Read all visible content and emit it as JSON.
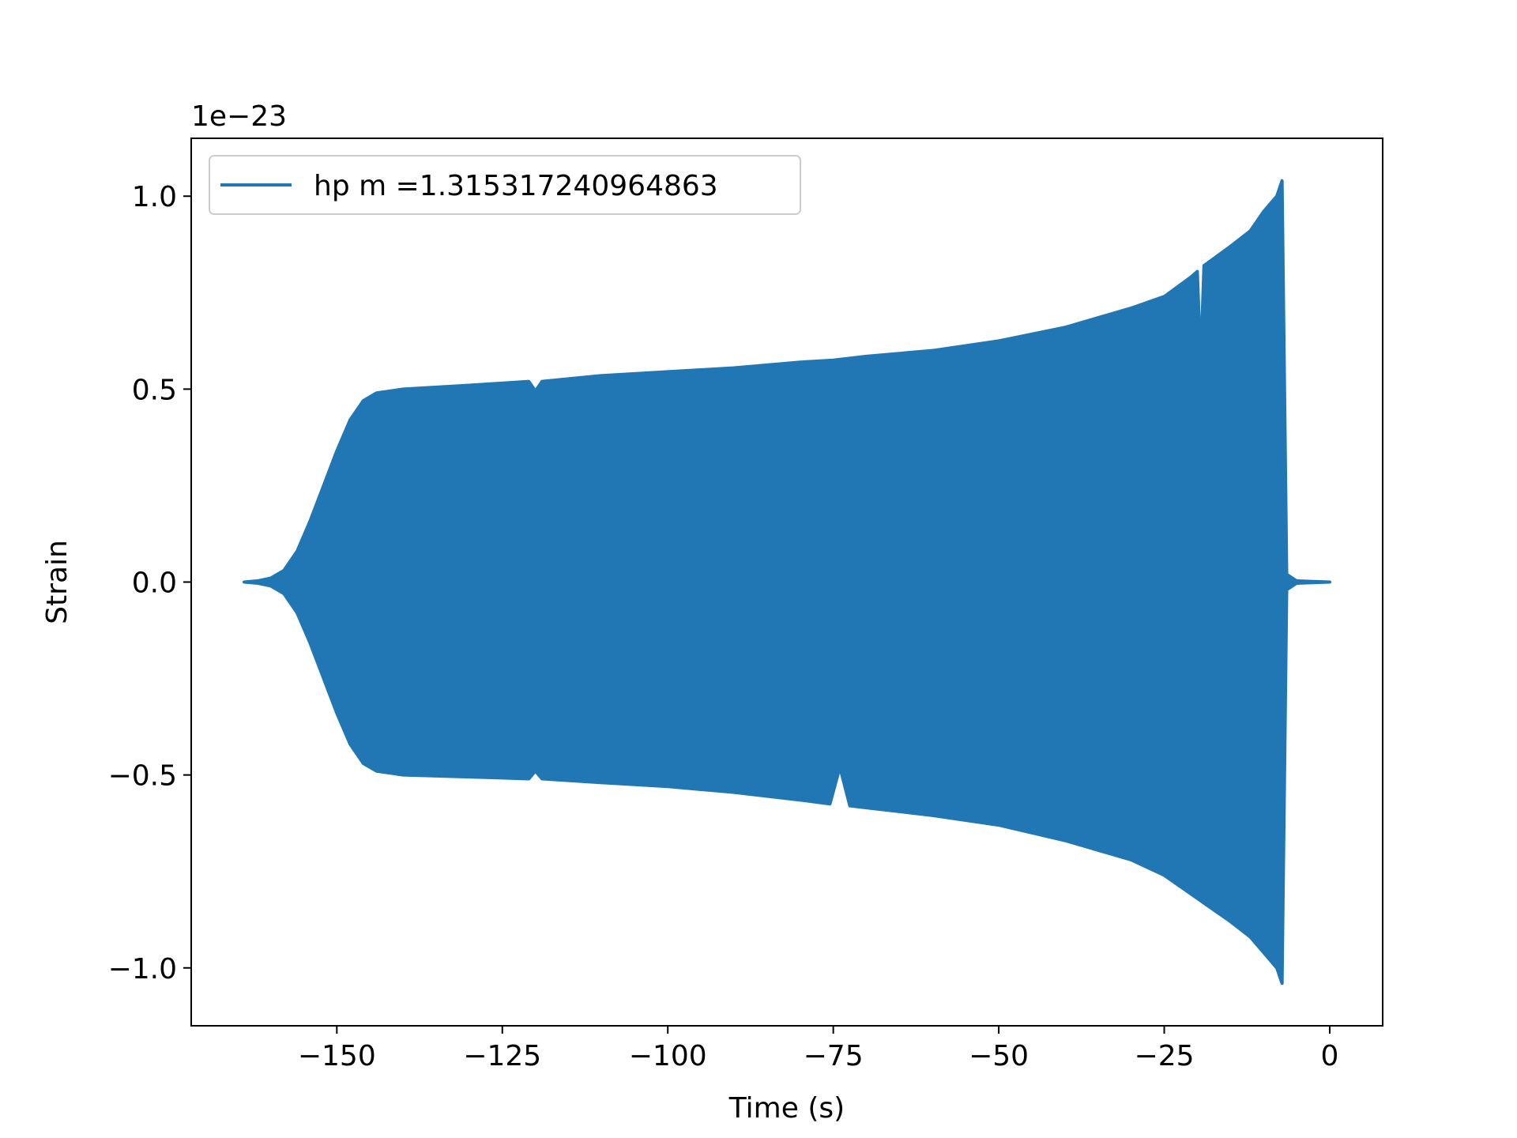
{
  "chart_data": {
    "type": "line",
    "title": "",
    "xlabel": "Time (s)",
    "ylabel": "Strain",
    "y_offset_label": "1e−23",
    "xlim": [
      -172,
      8
    ],
    "ylim": [
      -1.15,
      1.15
    ],
    "x_ticks": [
      -150,
      -125,
      -100,
      -75,
      -50,
      -25,
      0
    ],
    "x_tick_labels": [
      "−150",
      "−125",
      "−100",
      "−75",
      "−50",
      "−25",
      "0"
    ],
    "y_ticks": [
      -1.0,
      -0.5,
      0.0,
      0.5,
      1.0
    ],
    "y_tick_labels": [
      "−1.0",
      "−0.5",
      "0.0",
      "0.5",
      "1.0"
    ],
    "grid": false,
    "legend_position": "upper-left",
    "series": [
      {
        "name": "hp m =1.315317240964863",
        "color": "#2077b4",
        "envelope": {
          "upper": [
            [
              -164,
              0.0
            ],
            [
              -162,
              0.003
            ],
            [
              -160,
              0.01
            ],
            [
              -158,
              0.03
            ],
            [
              -156,
              0.08
            ],
            [
              -154,
              0.16
            ],
            [
              -152,
              0.25
            ],
            [
              -150,
              0.34
            ],
            [
              -148,
              0.42
            ],
            [
              -146,
              0.47
            ],
            [
              -144,
              0.49
            ],
            [
              -142,
              0.495
            ],
            [
              -140,
              0.5
            ],
            [
              -130,
              0.51
            ],
            [
              -121,
              0.52
            ],
            [
              -120,
              0.495
            ],
            [
              -119,
              0.52
            ],
            [
              -110,
              0.535
            ],
            [
              -100,
              0.545
            ],
            [
              -90,
              0.555
            ],
            [
              -80,
              0.57
            ],
            [
              -75,
              0.575
            ],
            [
              -70,
              0.585
            ],
            [
              -60,
              0.6
            ],
            [
              -50,
              0.625
            ],
            [
              -40,
              0.66
            ],
            [
              -30,
              0.71
            ],
            [
              -25,
              0.74
            ],
            [
              -21,
              0.79
            ],
            [
              -20,
              0.805
            ],
            [
              -19.5,
              0.57
            ],
            [
              -19,
              0.82
            ],
            [
              -15,
              0.87
            ],
            [
              -12,
              0.91
            ],
            [
              -10,
              0.96
            ],
            [
              -8,
              1.0
            ],
            [
              -7.2,
              1.04
            ],
            [
              -6.5,
              0.02
            ],
            [
              -5,
              0.003
            ],
            [
              0,
              0.0
            ]
          ],
          "lower": [
            [
              -164,
              0.0
            ],
            [
              -162,
              -0.003
            ],
            [
              -160,
              -0.01
            ],
            [
              -158,
              -0.03
            ],
            [
              -156,
              -0.08
            ],
            [
              -154,
              -0.16
            ],
            [
              -152,
              -0.25
            ],
            [
              -150,
              -0.34
            ],
            [
              -148,
              -0.42
            ],
            [
              -146,
              -0.47
            ],
            [
              -144,
              -0.49
            ],
            [
              -142,
              -0.495
            ],
            [
              -140,
              -0.5
            ],
            [
              -130,
              -0.505
            ],
            [
              -121,
              -0.51
            ],
            [
              -120,
              -0.49
            ],
            [
              -119,
              -0.51
            ],
            [
              -110,
              -0.52
            ],
            [
              -100,
              -0.53
            ],
            [
              -90,
              -0.545
            ],
            [
              -80,
              -0.565
            ],
            [
              -75.5,
              -0.575
            ],
            [
              -74,
              -0.48
            ],
            [
              -72.5,
              -0.58
            ],
            [
              -70,
              -0.585
            ],
            [
              -60,
              -0.605
            ],
            [
              -50,
              -0.63
            ],
            [
              -40,
              -0.67
            ],
            [
              -30,
              -0.72
            ],
            [
              -25,
              -0.76
            ],
            [
              -20,
              -0.82
            ],
            [
              -15,
              -0.88
            ],
            [
              -12,
              -0.92
            ],
            [
              -10,
              -0.96
            ],
            [
              -8,
              -1.0
            ],
            [
              -7.2,
              -1.04
            ],
            [
              -6.5,
              -0.02
            ],
            [
              -5,
              -0.003
            ],
            [
              0,
              0.0
            ]
          ]
        }
      }
    ]
  }
}
